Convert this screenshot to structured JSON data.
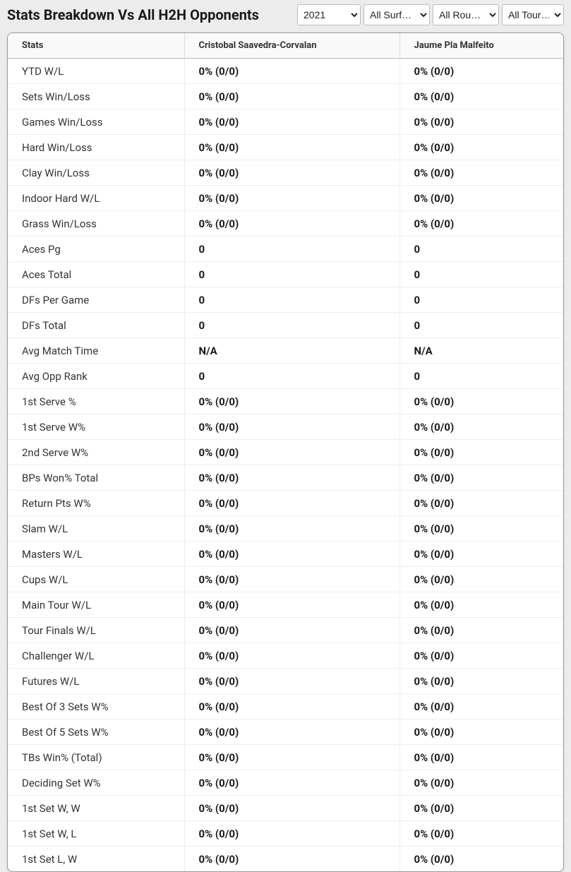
{
  "header": {
    "title": "Stats Breakdown Vs All H2H Opponents"
  },
  "filters": {
    "year": {
      "selected": "2021",
      "options": [
        "2021"
      ]
    },
    "surface": {
      "selected": "All Surf…",
      "options": [
        "All Surf…"
      ]
    },
    "round": {
      "selected": "All Rou…",
      "options": [
        "All Rou…"
      ]
    },
    "tour": {
      "selected": "All Tour…",
      "options": [
        "All Tour…"
      ]
    }
  },
  "table": {
    "columns": [
      "Stats",
      "Cristobal Saavedra-Corvalan",
      "Jaume Pla Malfeito"
    ],
    "rows": [
      [
        "YTD W/L",
        "0% (0/0)",
        "0% (0/0)"
      ],
      [
        "Sets Win/Loss",
        "0% (0/0)",
        "0% (0/0)"
      ],
      [
        "Games Win/Loss",
        "0% (0/0)",
        "0% (0/0)"
      ],
      [
        "Hard Win/Loss",
        "0% (0/0)",
        "0% (0/0)"
      ],
      [
        "Clay Win/Loss",
        "0% (0/0)",
        "0% (0/0)"
      ],
      [
        "Indoor Hard W/L",
        "0% (0/0)",
        "0% (0/0)"
      ],
      [
        "Grass Win/Loss",
        "0% (0/0)",
        "0% (0/0)"
      ],
      [
        "Aces Pg",
        "0",
        "0"
      ],
      [
        "Aces Total",
        "0",
        "0"
      ],
      [
        "DFs Per Game",
        "0",
        "0"
      ],
      [
        "DFs Total",
        "0",
        "0"
      ],
      [
        "Avg Match Time",
        "N/A",
        "N/A"
      ],
      [
        "Avg Opp Rank",
        "0",
        "0"
      ],
      [
        "1st Serve %",
        "0% (0/0)",
        "0% (0/0)"
      ],
      [
        "1st Serve W%",
        "0% (0/0)",
        "0% (0/0)"
      ],
      [
        "2nd Serve W%",
        "0% (0/0)",
        "0% (0/0)"
      ],
      [
        "BPs Won% Total",
        "0% (0/0)",
        "0% (0/0)"
      ],
      [
        "Return Pts W%",
        "0% (0/0)",
        "0% (0/0)"
      ],
      [
        "Slam W/L",
        "0% (0/0)",
        "0% (0/0)"
      ],
      [
        "Masters W/L",
        "0% (0/0)",
        "0% (0/0)"
      ],
      [
        "Cups W/L",
        "0% (0/0)",
        "0% (0/0)"
      ],
      [
        "Main Tour W/L",
        "0% (0/0)",
        "0% (0/0)"
      ],
      [
        "Tour Finals W/L",
        "0% (0/0)",
        "0% (0/0)"
      ],
      [
        "Challenger W/L",
        "0% (0/0)",
        "0% (0/0)"
      ],
      [
        "Futures W/L",
        "0% (0/0)",
        "0% (0/0)"
      ],
      [
        "Best Of 3 Sets W%",
        "0% (0/0)",
        "0% (0/0)"
      ],
      [
        "Best Of 5 Sets W%",
        "0% (0/0)",
        "0% (0/0)"
      ],
      [
        "TBs Win% (Total)",
        "0% (0/0)",
        "0% (0/0)"
      ],
      [
        "Deciding Set W%",
        "0% (0/0)",
        "0% (0/0)"
      ],
      [
        "1st Set W, W",
        "0% (0/0)",
        "0% (0/0)"
      ],
      [
        "1st Set W, L",
        "0% (0/0)",
        "0% (0/0)"
      ],
      [
        "1st Set L, W",
        "0% (0/0)",
        "0% (0/0)"
      ]
    ]
  },
  "styling": {
    "background_color": "#ececec",
    "table_background": "#ffffff",
    "table_border": "#999999",
    "header_bg": "#f9f9f9",
    "row_border": "#eeeeee",
    "text_color": "#2a2a2a",
    "bold_text_color": "#1a1a1a",
    "title_fontsize": 20,
    "header_fontsize": 13,
    "cell_fontsize": 15
  }
}
